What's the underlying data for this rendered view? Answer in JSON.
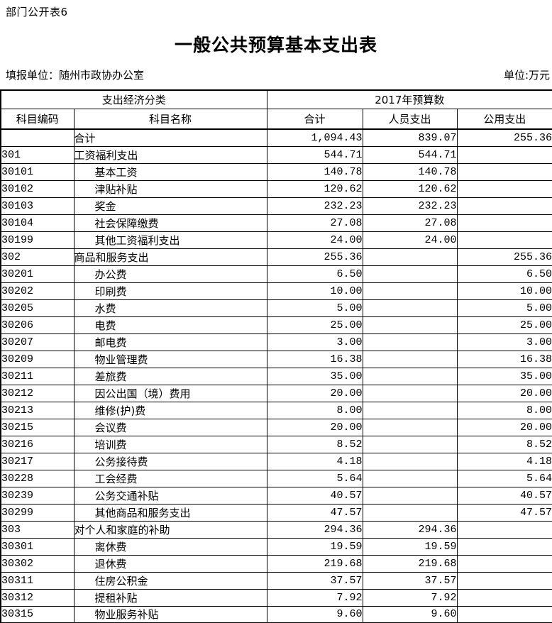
{
  "page": {
    "doc_label": "部门公开表6",
    "title": "一般公共预算基本支出表",
    "fill_unit": "填报单位：随州市政协办公室",
    "money_unit": "单位:万元"
  },
  "colors": {
    "background": "#ffffff",
    "text": "#000000",
    "border": "#000000"
  },
  "table": {
    "header": {
      "group_left": "支出经济分类",
      "group_right": "2017年预算数",
      "col_code": "科目编码",
      "col_name": "科目名称",
      "col_total": "合计",
      "col_personnel": "人员支出",
      "col_public": "公用支出"
    },
    "rows": [
      {
        "code": "",
        "name": "合计",
        "level": 0,
        "total": "1,094.43",
        "personnel": "839.07",
        "public": "255.36"
      },
      {
        "code": "301",
        "name": "工资福利支出",
        "level": 0,
        "total": "544.71",
        "personnel": "544.71",
        "public": ""
      },
      {
        "code": "30101",
        "name": "基本工资",
        "level": 1,
        "total": "140.78",
        "personnel": "140.78",
        "public": ""
      },
      {
        "code": "30102",
        "name": "津贴补贴",
        "level": 1,
        "total": "120.62",
        "personnel": "120.62",
        "public": ""
      },
      {
        "code": "30103",
        "name": "奖金",
        "level": 1,
        "total": "232.23",
        "personnel": "232.23",
        "public": ""
      },
      {
        "code": "30104",
        "name": "社会保障缴费",
        "level": 1,
        "total": "27.08",
        "personnel": "27.08",
        "public": ""
      },
      {
        "code": "30199",
        "name": "其他工资福利支出",
        "level": 1,
        "total": "24.00",
        "personnel": "24.00",
        "public": ""
      },
      {
        "code": "302",
        "name": "商品和服务支出",
        "level": 0,
        "total": "255.36",
        "personnel": "",
        "public": "255.36"
      },
      {
        "code": "30201",
        "name": "办公费",
        "level": 1,
        "total": "6.50",
        "personnel": "",
        "public": "6.50"
      },
      {
        "code": "30202",
        "name": "印刷费",
        "level": 1,
        "total": "10.00",
        "personnel": "",
        "public": "10.00"
      },
      {
        "code": "30205",
        "name": "水费",
        "level": 1,
        "total": "5.00",
        "personnel": "",
        "public": "5.00"
      },
      {
        "code": "30206",
        "name": "电费",
        "level": 1,
        "total": "25.00",
        "personnel": "",
        "public": "25.00"
      },
      {
        "code": "30207",
        "name": "邮电费",
        "level": 1,
        "total": "3.00",
        "personnel": "",
        "public": "3.00"
      },
      {
        "code": "30209",
        "name": "物业管理费",
        "level": 1,
        "total": "16.38",
        "personnel": "",
        "public": "16.38"
      },
      {
        "code": "30211",
        "name": "差旅费",
        "level": 1,
        "total": "35.00",
        "personnel": "",
        "public": "35.00"
      },
      {
        "code": "30212",
        "name": "因公出国（境）费用",
        "level": 1,
        "total": "20.00",
        "personnel": "",
        "public": "20.00"
      },
      {
        "code": "30213",
        "name": "维修(护)费",
        "level": 1,
        "total": "8.00",
        "personnel": "",
        "public": "8.00"
      },
      {
        "code": "30215",
        "name": "会议费",
        "level": 1,
        "total": "20.00",
        "personnel": "",
        "public": "20.00"
      },
      {
        "code": "30216",
        "name": "培训费",
        "level": 1,
        "total": "8.52",
        "personnel": "",
        "public": "8.52"
      },
      {
        "code": "30217",
        "name": "公务接待费",
        "level": 1,
        "total": "4.18",
        "personnel": "",
        "public": "4.18"
      },
      {
        "code": "30228",
        "name": "工会经费",
        "level": 1,
        "total": "5.64",
        "personnel": "",
        "public": "5.64"
      },
      {
        "code": "30239",
        "name": "公务交通补贴",
        "level": 1,
        "total": "40.57",
        "personnel": "",
        "public": "40.57"
      },
      {
        "code": "30299",
        "name": "其他商品和服务支出",
        "level": 1,
        "total": "47.57",
        "personnel": "",
        "public": "47.57"
      },
      {
        "code": "303",
        "name": "对个人和家庭的补助",
        "level": 0,
        "total": "294.36",
        "personnel": "294.36",
        "public": ""
      },
      {
        "code": "30301",
        "name": "离休费",
        "level": 1,
        "total": "19.59",
        "personnel": "19.59",
        "public": ""
      },
      {
        "code": "30302",
        "name": "退休费",
        "level": 1,
        "total": "219.68",
        "personnel": "219.68",
        "public": ""
      },
      {
        "code": "30311",
        "name": "住房公积金",
        "level": 1,
        "total": "37.57",
        "personnel": "37.57",
        "public": ""
      },
      {
        "code": "30312",
        "name": "提租补贴",
        "level": 1,
        "total": "7.92",
        "personnel": "7.92",
        "public": ""
      },
      {
        "code": "30315",
        "name": "物业服务补贴",
        "level": 1,
        "total": "9.60",
        "personnel": "9.60",
        "public": ""
      }
    ]
  }
}
